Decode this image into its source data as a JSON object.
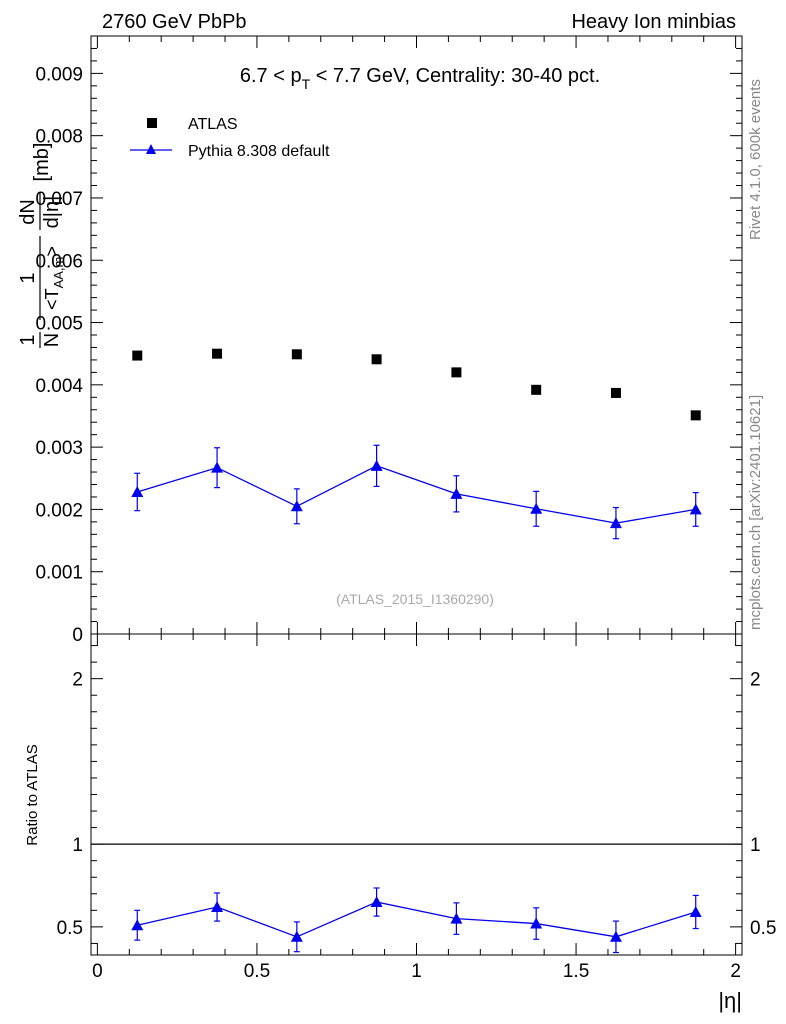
{
  "header": {
    "left": "2760 GeV PbPb",
    "right": "Heavy Ion minbias"
  },
  "side_labels": {
    "rivet": "Rivet 4.1.0,  600k events",
    "mcplots": "mcplots.cern.ch [arXiv:2401.10621]"
  },
  "chart_data": [
    {
      "type": "scatter",
      "title": "6.7 < p_T < 7.7 GeV, Centrality: 30-40 pct.",
      "title_parts": {
        "a": "6.7 < p",
        "sub": "T",
        "b": " < 7.7 GeV, Centrality: 30-40 pct."
      },
      "watermark": "(ATLAS_2015_I1360290)",
      "ylabel": "1/N 1/<T_AA,m> dN/d|η| [mb]",
      "ylabel_parts": {
        "frac1_num": "1",
        "frac1_den": "N",
        "frac2_num": "1",
        "frac2_den_a": "<T",
        "frac2_den_sub": "AA,m",
        "frac2_den_b": ">",
        "frac3_num": "dN",
        "frac3_den": "d|η|",
        "unit": "[mb]"
      },
      "xlim": [
        -0.02,
        2.02
      ],
      "ylim": [
        0,
        0.0096
      ],
      "yticks": [
        0,
        0.001,
        0.002,
        0.003,
        0.004,
        0.005,
        0.006,
        0.007,
        0.008,
        0.009
      ],
      "ytick_labels": [
        "0",
        "0.001",
        "0.002",
        "0.003",
        "0.004",
        "0.005",
        "0.006",
        "0.007",
        "0.008",
        "0.009"
      ],
      "legend": {
        "position": "top-left",
        "entries": [
          "ATLAS",
          "Pythia 8.308 default"
        ]
      },
      "x": [
        0.125,
        0.375,
        0.625,
        0.875,
        1.125,
        1.375,
        1.625,
        1.875
      ],
      "series": [
        {
          "name": "ATLAS",
          "color": "#000000",
          "marker": "square",
          "values": [
            0.00447,
            0.0045,
            0.00449,
            0.00441,
            0.0042,
            0.00392,
            0.00387,
            0.00351
          ]
        },
        {
          "name": "Pythia 8.308 default",
          "color": "#0000ee",
          "marker": "triangle",
          "values": [
            0.00228,
            0.00267,
            0.00205,
            0.0027,
            0.00225,
            0.00201,
            0.00178,
            0.002
          ],
          "errors": [
            0.0003,
            0.00032,
            0.00028,
            0.00033,
            0.00029,
            0.00028,
            0.00025,
            0.00027
          ]
        }
      ]
    },
    {
      "type": "scatter",
      "ylabel": "Ratio to ATLAS",
      "xlabel": "|η|",
      "xlim": [
        -0.02,
        2.02
      ],
      "ylim": [
        0.33,
        2.27
      ],
      "xticks": [
        0,
        0.5,
        1,
        1.5,
        2
      ],
      "xtick_labels": [
        "0",
        "0.5",
        "1",
        "1.5",
        "2"
      ],
      "yticks": [
        0.5,
        1,
        2
      ],
      "ytick_labels": [
        "0.5",
        "1",
        "2"
      ],
      "reference_line": 1,
      "x": [
        0.125,
        0.375,
        0.625,
        0.875,
        1.125,
        1.375,
        1.625,
        1.875
      ],
      "series": [
        {
          "name": "Pythia 8.308 default",
          "color": "#0000ee",
          "marker": "triangle",
          "values": [
            0.51,
            0.62,
            0.44,
            0.65,
            0.55,
            0.52,
            0.44,
            0.59
          ],
          "errors": [
            0.09,
            0.085,
            0.09,
            0.085,
            0.095,
            0.095,
            0.095,
            0.1
          ]
        }
      ]
    }
  ]
}
